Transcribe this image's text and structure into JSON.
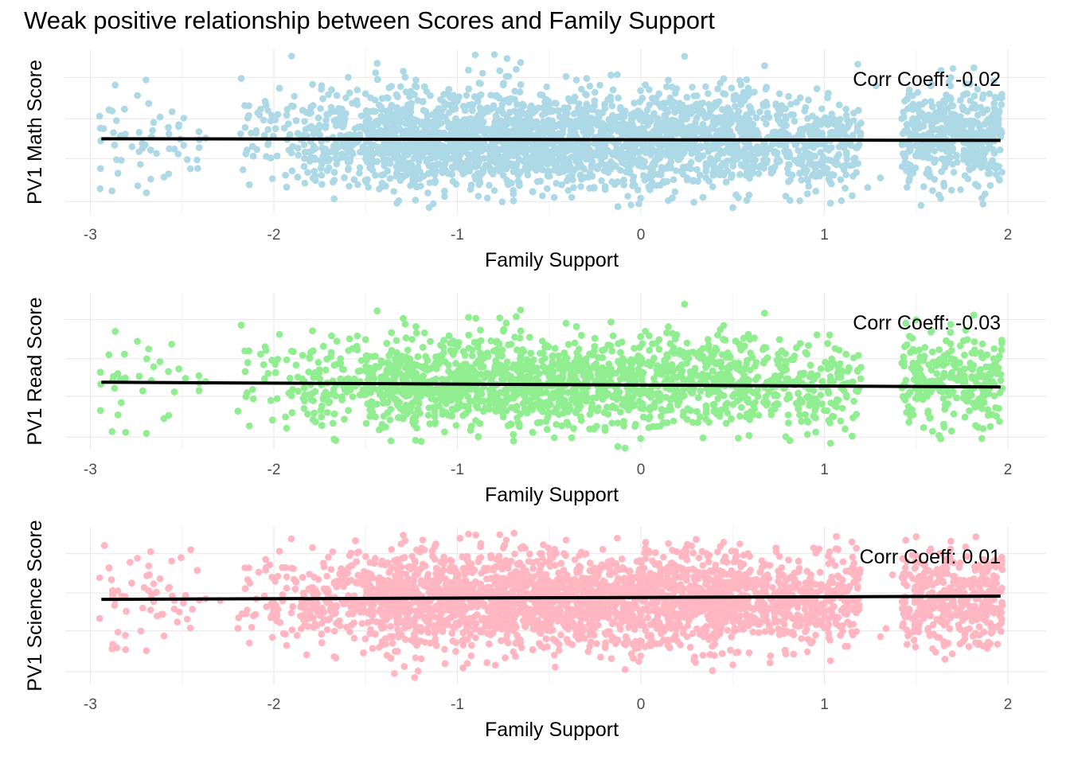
{
  "title": "Weak positive relationship between Scores and Family Support",
  "chart_data": [
    {
      "type": "scatter",
      "xlabel": "Family Support",
      "ylabel": "PV1 Math Score",
      "xlim": [
        -3.1,
        2.2
      ],
      "x_ticks": [
        "-3",
        "-2",
        "-1",
        "0",
        "1",
        "2"
      ],
      "y_tick_labels_shown": false,
      "grid": true,
      "color": "#add8e6",
      "trend_color": "#000000",
      "annotation": "Corr Coeff: -0.02",
      "trend_line": {
        "x": [
          -2.94,
          1.96
        ],
        "y_rel": [
          0.54,
          0.55
        ]
      },
      "point_count_estimate": 8000
    },
    {
      "type": "scatter",
      "xlabel": "Family Support",
      "ylabel": "PV1 Read Score",
      "xlim": [
        -3.1,
        2.2
      ],
      "x_ticks": [
        "-3",
        "-2",
        "-1",
        "0",
        "1",
        "2"
      ],
      "y_tick_labels_shown": false,
      "grid": true,
      "color": "#90ee90",
      "trend_color": "#000000",
      "annotation": "Corr Coeff: -0.03",
      "trend_line": {
        "x": [
          -2.94,
          1.96
        ],
        "y_rel": [
          0.57,
          0.6
        ]
      },
      "point_count_estimate": 8000
    },
    {
      "type": "scatter",
      "xlabel": "Family Support",
      "ylabel": "PV1 Science Score",
      "xlim": [
        -3.1,
        2.2
      ],
      "x_ticks": [
        "-3",
        "-2",
        "-1",
        "0",
        "1",
        "2"
      ],
      "y_tick_labels_shown": false,
      "grid": true,
      "color": "#ffb6c1",
      "trend_color": "#000000",
      "annotation": "Corr Coeff: 0.01",
      "trend_line": {
        "x": [
          -2.94,
          1.96
        ],
        "y_rel": [
          0.46,
          0.44
        ]
      },
      "point_count_estimate": 8000
    }
  ]
}
